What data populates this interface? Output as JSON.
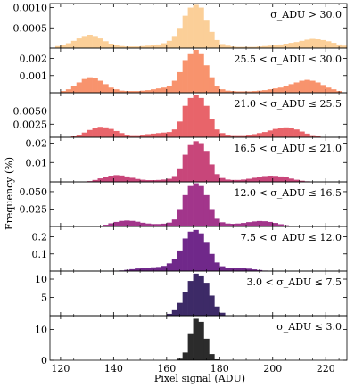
{
  "chart_data": [
    {
      "type": "bar",
      "annotation": "σ_ADU > 30.0",
      "color": "#fbcf98",
      "ylim": [
        0,
        0.0011
      ],
      "yticks": [
        {
          "value": 0.0005,
          "label": "0.0005"
        },
        {
          "value": 0.001,
          "label": "0.0010"
        }
      ],
      "bins": [
        [
          119,
          5e-05
        ],
        [
          121,
          8e-05
        ],
        [
          123,
          0.00012
        ],
        [
          125,
          0.00018
        ],
        [
          127,
          0.00024
        ],
        [
          129,
          0.0003
        ],
        [
          131,
          0.00033
        ],
        [
          133,
          0.0003
        ],
        [
          135,
          0.00024
        ],
        [
          137,
          0.00017
        ],
        [
          139,
          0.00011
        ],
        [
          141,
          7e-05
        ],
        [
          143,
          5e-05
        ],
        [
          145,
          4e-05
        ],
        [
          147,
          4e-05
        ],
        [
          149,
          4e-05
        ],
        [
          151,
          5e-05
        ],
        [
          153,
          6e-05
        ],
        [
          155,
          7e-05
        ],
        [
          157,
          9e-05
        ],
        [
          159,
          0.00012
        ],
        [
          161,
          0.00018
        ],
        [
          163,
          0.0003
        ],
        [
          165,
          0.0005
        ],
        [
          167,
          0.0008
        ],
        [
          169,
          0.001
        ],
        [
          171,
          0.00107
        ],
        [
          173,
          0.001
        ],
        [
          175,
          0.0007
        ],
        [
          177,
          0.0004
        ],
        [
          179,
          0.0002
        ],
        [
          181,
          0.0001
        ],
        [
          183,
          6e-05
        ],
        [
          185,
          4e-05
        ],
        [
          187,
          3e-05
        ],
        [
          189,
          3e-05
        ],
        [
          191,
          3e-05
        ],
        [
          193,
          3e-05
        ],
        [
          195,
          4e-05
        ],
        [
          197,
          5e-05
        ],
        [
          199,
          6e-05
        ],
        [
          201,
          7e-05
        ],
        [
          203,
          9e-05
        ],
        [
          205,
          0.00011
        ],
        [
          207,
          0.00013
        ],
        [
          209,
          0.00015
        ],
        [
          211,
          0.00018
        ],
        [
          213,
          0.00021
        ],
        [
          215,
          0.00023
        ],
        [
          217,
          0.00022
        ],
        [
          219,
          0.0002
        ],
        [
          221,
          0.00017
        ],
        [
          223,
          0.00013
        ],
        [
          225,
          9e-05
        ],
        [
          227,
          6e-05
        ]
      ]
    },
    {
      "type": "bar",
      "annotation": "25.5 < σ_ADU ≤ 30.0",
      "color": "#f8936d",
      "ylim": [
        0,
        0.0026
      ],
      "yticks": [
        {
          "value": 0.001,
          "label": "0.001"
        },
        {
          "value": 0.002,
          "label": "0.002"
        }
      ],
      "bins": [
        [
          121,
          0.0001
        ],
        [
          123,
          0.0002
        ],
        [
          125,
          0.0004
        ],
        [
          127,
          0.0006
        ],
        [
          129,
          0.0008
        ],
        [
          131,
          0.0009
        ],
        [
          133,
          0.00085
        ],
        [
          135,
          0.0007
        ],
        [
          137,
          0.0005
        ],
        [
          139,
          0.0003
        ],
        [
          141,
          0.0002
        ],
        [
          143,
          0.00012
        ],
        [
          145,
          0.0001
        ],
        [
          147,
          0.0001
        ],
        [
          149,
          0.0001
        ],
        [
          151,
          0.00012
        ],
        [
          153,
          0.00015
        ],
        [
          155,
          0.0002
        ],
        [
          157,
          0.00025
        ],
        [
          159,
          0.0003
        ],
        [
          161,
          0.0004
        ],
        [
          163,
          0.0007
        ],
        [
          165,
          0.0012
        ],
        [
          167,
          0.0019
        ],
        [
          169,
          0.0023
        ],
        [
          171,
          0.0025
        ],
        [
          173,
          0.0023
        ],
        [
          175,
          0.0016
        ],
        [
          177,
          0.0009
        ],
        [
          179,
          0.0004
        ],
        [
          181,
          0.0002
        ],
        [
          183,
          0.00012
        ],
        [
          185,
          0.0001
        ],
        [
          187,
          8e-05
        ],
        [
          189,
          8e-05
        ],
        [
          191,
          8e-05
        ],
        [
          193,
          0.0001
        ],
        [
          195,
          0.00012
        ],
        [
          197,
          0.00015
        ],
        [
          199,
          0.0002
        ],
        [
          201,
          0.00025
        ],
        [
          203,
          0.0003
        ],
        [
          205,
          0.0004
        ],
        [
          207,
          0.0005
        ],
        [
          209,
          0.0006
        ],
        [
          211,
          0.0007
        ],
        [
          213,
          0.00075
        ],
        [
          215,
          0.0007
        ],
        [
          217,
          0.0006
        ],
        [
          219,
          0.00045
        ],
        [
          221,
          0.0003
        ],
        [
          223,
          0.0002
        ],
        [
          225,
          0.0001
        ]
      ]
    },
    {
      "type": "bar",
      "annotation": "21.0 < σ_ADU ≤ 25.5",
      "color": "#e8646a",
      "ylim": [
        0,
        0.0085
      ],
      "yticks": [
        {
          "value": 0.0025,
          "label": "0.0025"
        },
        {
          "value": 0.005,
          "label": "0.0050"
        }
      ],
      "bins": [
        [
          125,
          0.0002
        ],
        [
          127,
          0.0005
        ],
        [
          129,
          0.0009
        ],
        [
          131,
          0.0014
        ],
        [
          133,
          0.0018
        ],
        [
          135,
          0.002
        ],
        [
          137,
          0.0019
        ],
        [
          139,
          0.0016
        ],
        [
          141,
          0.0012
        ],
        [
          143,
          0.0008
        ],
        [
          145,
          0.0005
        ],
        [
          147,
          0.0004
        ],
        [
          149,
          0.0004
        ],
        [
          151,
          0.0005
        ],
        [
          153,
          0.0006
        ],
        [
          155,
          0.0007
        ],
        [
          157,
          0.0008
        ],
        [
          159,
          0.0009
        ],
        [
          161,
          0.001
        ],
        [
          163,
          0.0015
        ],
        [
          165,
          0.003
        ],
        [
          167,
          0.006
        ],
        [
          169,
          0.0075
        ],
        [
          171,
          0.008
        ],
        [
          173,
          0.0075
        ],
        [
          175,
          0.006
        ],
        [
          177,
          0.0035
        ],
        [
          179,
          0.0015
        ],
        [
          181,
          0.0008
        ],
        [
          183,
          0.0005
        ],
        [
          185,
          0.0004
        ],
        [
          187,
          0.0004
        ],
        [
          189,
          0.0004
        ],
        [
          191,
          0.0005
        ],
        [
          193,
          0.0006
        ],
        [
          195,
          0.0008
        ],
        [
          197,
          0.001
        ],
        [
          199,
          0.0013
        ],
        [
          201,
          0.0016
        ],
        [
          203,
          0.0018
        ],
        [
          205,
          0.0019
        ],
        [
          207,
          0.0018
        ],
        [
          209,
          0.0015
        ],
        [
          211,
          0.0011
        ],
        [
          213,
          0.0007
        ],
        [
          215,
          0.0004
        ],
        [
          217,
          0.0002
        ]
      ]
    },
    {
      "type": "bar",
      "annotation": "16.5 < σ_ADU ≤ 21.0",
      "color": "#c8467a",
      "ylim": [
        0,
        0.023
      ],
      "yticks": [
        {
          "value": 0.01,
          "label": "0.01"
        },
        {
          "value": 0.02,
          "label": "0.02"
        }
      ],
      "bins": [
        [
          131,
          0.0004
        ],
        [
          133,
          0.001
        ],
        [
          135,
          0.0018
        ],
        [
          137,
          0.0026
        ],
        [
          139,
          0.0032
        ],
        [
          141,
          0.0035
        ],
        [
          143,
          0.0033
        ],
        [
          145,
          0.0028
        ],
        [
          147,
          0.0021
        ],
        [
          149,
          0.0015
        ],
        [
          151,
          0.0011
        ],
        [
          153,
          0.0009
        ],
        [
          155,
          0.0009
        ],
        [
          157,
          0.001
        ],
        [
          159,
          0.0012
        ],
        [
          161,
          0.0016
        ],
        [
          163,
          0.003
        ],
        [
          165,
          0.007
        ],
        [
          167,
          0.014
        ],
        [
          169,
          0.019
        ],
        [
          171,
          0.021
        ],
        [
          173,
          0.02
        ],
        [
          175,
          0.016
        ],
        [
          177,
          0.009
        ],
        [
          179,
          0.004
        ],
        [
          181,
          0.002
        ],
        [
          183,
          0.0012
        ],
        [
          185,
          0.001
        ],
        [
          187,
          0.001
        ],
        [
          189,
          0.0012
        ],
        [
          191,
          0.0016
        ],
        [
          193,
          0.0021
        ],
        [
          195,
          0.0026
        ],
        [
          197,
          0.003
        ],
        [
          199,
          0.0032
        ],
        [
          201,
          0.0031
        ],
        [
          203,
          0.0028
        ],
        [
          205,
          0.0023
        ],
        [
          207,
          0.0017
        ],
        [
          209,
          0.0011
        ],
        [
          211,
          0.0006
        ],
        [
          213,
          0.0003
        ]
      ]
    },
    {
      "type": "bar",
      "annotation": "12.0 < σ_ADU ≤ 16.5",
      "color": "#a2358b",
      "ylim": [
        0,
        0.064
      ],
      "yticks": [
        {
          "value": 0.025,
          "label": "0.025"
        },
        {
          "value": 0.05,
          "label": "0.050"
        }
      ],
      "bins": [
        [
          135,
          0.001
        ],
        [
          137,
          0.0025
        ],
        [
          139,
          0.0045
        ],
        [
          141,
          0.0065
        ],
        [
          143,
          0.008
        ],
        [
          145,
          0.0085
        ],
        [
          147,
          0.008
        ],
        [
          149,
          0.0068
        ],
        [
          151,
          0.0053
        ],
        [
          153,
          0.0042
        ],
        [
          155,
          0.0035
        ],
        [
          157,
          0.0035
        ],
        [
          159,
          0.004
        ],
        [
          161,
          0.0055
        ],
        [
          163,
          0.01
        ],
        [
          165,
          0.025
        ],
        [
          167,
          0.045
        ],
        [
          169,
          0.058
        ],
        [
          171,
          0.062
        ],
        [
          173,
          0.058
        ],
        [
          175,
          0.045
        ],
        [
          177,
          0.025
        ],
        [
          179,
          0.011
        ],
        [
          181,
          0.006
        ],
        [
          183,
          0.0042
        ],
        [
          185,
          0.0038
        ],
        [
          187,
          0.0042
        ],
        [
          189,
          0.005
        ],
        [
          191,
          0.0062
        ],
        [
          193,
          0.0072
        ],
        [
          195,
          0.0078
        ],
        [
          197,
          0.0075
        ],
        [
          199,
          0.0065
        ],
        [
          201,
          0.005
        ],
        [
          203,
          0.0032
        ],
        [
          205,
          0.0018
        ],
        [
          207,
          0.0008
        ]
      ]
    },
    {
      "type": "bar",
      "annotation": "7.5 < σ_ADU ≤ 12.0",
      "color": "#70288a",
      "ylim": [
        0,
        0.26
      ],
      "yticks": [
        {
          "value": 0.1,
          "label": "0.1"
        },
        {
          "value": 0.2,
          "label": "0.2"
        }
      ],
      "bins": [
        [
          141,
          0.002
        ],
        [
          143,
          0.004
        ],
        [
          145,
          0.007
        ],
        [
          147,
          0.011
        ],
        [
          149,
          0.015
        ],
        [
          151,
          0.018
        ],
        [
          153,
          0.02
        ],
        [
          155,
          0.022
        ],
        [
          157,
          0.024
        ],
        [
          159,
          0.03
        ],
        [
          161,
          0.045
        ],
        [
          163,
          0.07
        ],
        [
          165,
          0.12
        ],
        [
          167,
          0.19
        ],
        [
          169,
          0.23
        ],
        [
          171,
          0.24
        ],
        [
          173,
          0.22
        ],
        [
          175,
          0.17
        ],
        [
          177,
          0.1
        ],
        [
          179,
          0.05
        ],
        [
          181,
          0.028
        ],
        [
          183,
          0.02
        ],
        [
          185,
          0.018
        ],
        [
          187,
          0.018
        ],
        [
          189,
          0.017
        ],
        [
          191,
          0.014
        ],
        [
          193,
          0.01
        ],
        [
          195,
          0.006
        ],
        [
          197,
          0.003
        ]
      ]
    },
    {
      "type": "bar",
      "annotation": "3.0 < σ_ADU ≤ 7.5",
      "color": "#3d2a67",
      "ylim": [
        0,
        12.2
      ],
      "yticks": [
        {
          "value": 5,
          "label": "5"
        },
        {
          "value": 10,
          "label": "10"
        }
      ],
      "bins": [
        [
          161,
          0.5
        ],
        [
          163,
          1.5
        ],
        [
          165,
          3.5
        ],
        [
          167,
          6.5
        ],
        [
          169,
          9.5
        ],
        [
          171,
          11.5
        ],
        [
          173,
          11.0
        ],
        [
          175,
          9.0
        ],
        [
          177,
          5.5
        ],
        [
          179,
          2.5
        ],
        [
          181,
          0.8
        ]
      ]
    },
    {
      "type": "bar",
      "annotation": "σ_ADU ≤ 3.0",
      "color": "#2b2b2b",
      "ylim": [
        0,
        14.5
      ],
      "yticks": [
        {
          "value": 0,
          "label": "0"
        },
        {
          "value": 10,
          "label": "10"
        }
      ],
      "bins": [
        [
          165,
          0.5
        ],
        [
          167,
          2.5
        ],
        [
          169,
          8.5
        ],
        [
          171,
          13.5
        ],
        [
          173,
          12.5
        ],
        [
          175,
          7.0
        ],
        [
          177,
          2.0
        ],
        [
          179,
          0.3
        ]
      ]
    }
  ],
  "axes": {
    "xlabel": "Pixel signal (ADU)",
    "ylabel": "Frequency (%)",
    "xlim": [
      116,
      228
    ],
    "xticks": [
      120,
      140,
      160,
      180,
      200,
      220
    ]
  }
}
